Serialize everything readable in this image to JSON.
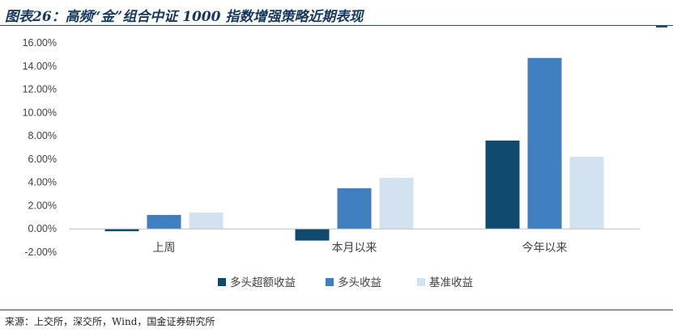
{
  "figure": {
    "title": "图表26：高频“金”组合中证 1000 指数增强策略近期表现",
    "source": "来源：上交所，深交所，Wind，国金证券研究所"
  },
  "chart_data": {
    "type": "bar",
    "categories": [
      "上周",
      "本月以来",
      "今年以来"
    ],
    "series": [
      {
        "name": "多头超额收益",
        "color": "#0d4a6e",
        "values": [
          -0.2,
          -1.0,
          7.6
        ]
      },
      {
        "name": "多头收益",
        "color": "#3f7fbf",
        "values": [
          1.2,
          3.5,
          14.7
        ]
      },
      {
        "name": "基准收益",
        "color": "#d3e2f1",
        "values": [
          1.4,
          4.4,
          6.2
        ]
      }
    ],
    "ylim": [
      -2,
      16
    ],
    "yticks": [
      -2,
      0,
      2,
      4,
      6,
      8,
      10,
      12,
      14,
      16
    ],
    "ytick_labels": [
      "-2.00%",
      "0.00%",
      "2.00%",
      "4.00%",
      "6.00%",
      "8.00%",
      "10.00%",
      "12.00%",
      "14.00%",
      "16.00%"
    ],
    "xlabel": "",
    "ylabel": "",
    "grid": false,
    "legend_position": "bottom"
  }
}
